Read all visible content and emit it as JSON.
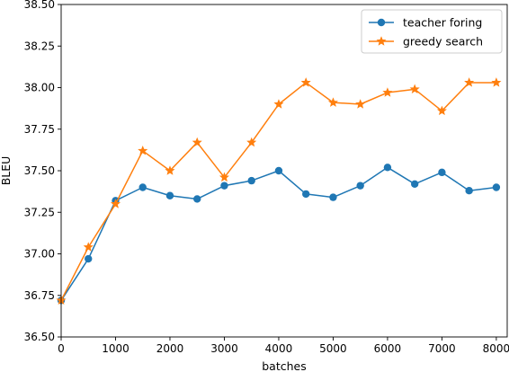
{
  "chart_data": {
    "type": "line",
    "title": "",
    "xlabel": "batches",
    "ylabel": "BLEU",
    "xlim": [
      0,
      8200
    ],
    "ylim": [
      36.5,
      38.5
    ],
    "xticks": [
      0,
      1000,
      2000,
      3000,
      4000,
      5000,
      6000,
      7000,
      8000
    ],
    "yticks": [
      36.5,
      36.75,
      37.0,
      37.25,
      37.5,
      37.75,
      38.0,
      38.25,
      38.5
    ],
    "ytick_labels": [
      "36.50",
      "36.75",
      "37.00",
      "37.25",
      "37.50",
      "37.75",
      "38.00",
      "38.25",
      "38.50"
    ],
    "grid": false,
    "legend_position": "top-right",
    "x": [
      0,
      500,
      1000,
      1500,
      2000,
      2500,
      3000,
      3500,
      4000,
      4500,
      5000,
      5500,
      6000,
      6500,
      7000,
      7500,
      8000
    ],
    "series": [
      {
        "name": "teacher foring",
        "color": "#1f77b4",
        "marker": "circle",
        "values": [
          36.72,
          36.97,
          37.32,
          37.4,
          37.35,
          37.33,
          37.41,
          37.44,
          37.5,
          37.36,
          37.34,
          37.41,
          37.52,
          37.42,
          37.49,
          37.38,
          37.4
        ]
      },
      {
        "name": "greedy search",
        "color": "#ff7f0e",
        "marker": "star",
        "values": [
          36.72,
          37.04,
          37.3,
          37.62,
          37.5,
          37.67,
          37.46,
          37.67,
          37.9,
          38.03,
          37.91,
          37.9,
          37.97,
          37.99,
          37.86,
          38.03,
          38.03
        ]
      }
    ]
  }
}
